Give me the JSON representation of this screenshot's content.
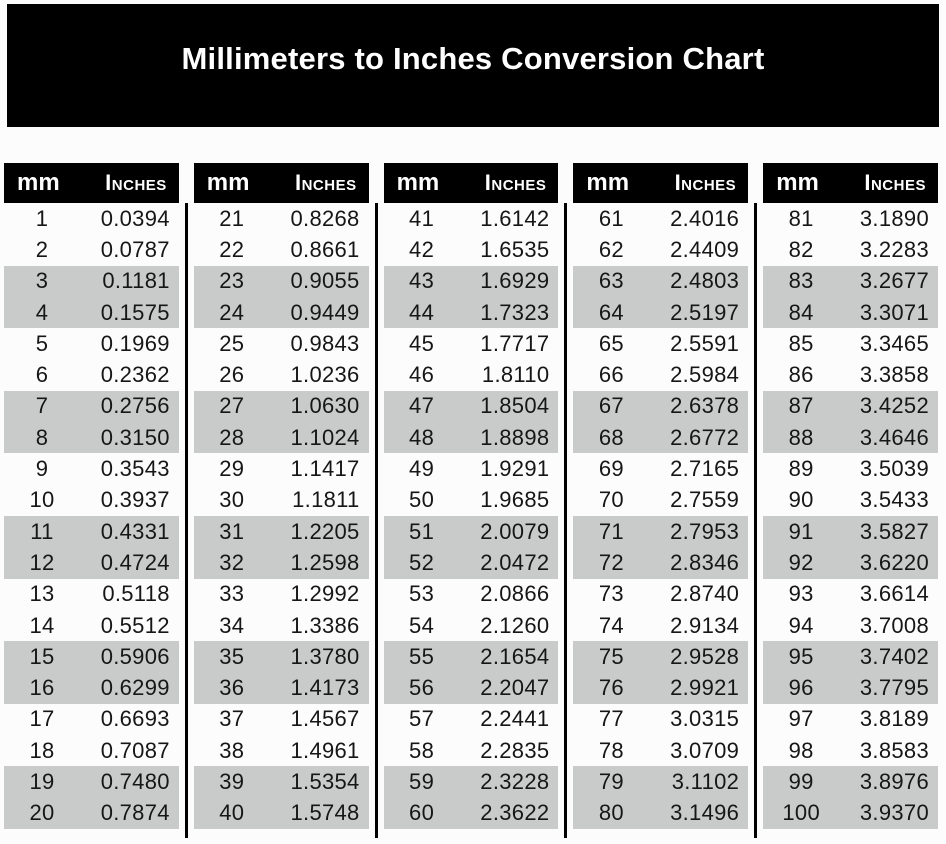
{
  "banner": {
    "title": "Millimeters to Inches Conversion Chart"
  },
  "table_header": {
    "mm_label": "mm",
    "inches_label": "Inches"
  },
  "colors": {
    "banner_bg": "#000000",
    "banner_text": "#ffffff",
    "header_bg": "#000000",
    "header_text": "#ffffff",
    "row_shaded_bg": "#c9cbca",
    "row_plain_bg": "#fcfcfc",
    "divider": "#000000",
    "body_text": "#161616"
  },
  "chart_data": {
    "type": "table",
    "title": "Millimeters to Inches Conversion Chart",
    "columns": [
      "mm",
      "Inches"
    ],
    "layout": "5 side-by-side blocks of 20 rows separated by vertical black rules",
    "shading_pattern": "within each block, row pairs 3-4, 7-8, 11-12, 15-16, 19-20 have gray background",
    "blocks": [
      {
        "rows": [
          [
            "1",
            "0.0394"
          ],
          [
            "2",
            "0.0787"
          ],
          [
            "3",
            "0.1181"
          ],
          [
            "4",
            "0.1575"
          ],
          [
            "5",
            "0.1969"
          ],
          [
            "6",
            "0.2362"
          ],
          [
            "7",
            "0.2756"
          ],
          [
            "8",
            "0.3150"
          ],
          [
            "9",
            "0.3543"
          ],
          [
            "10",
            "0.3937"
          ],
          [
            "11",
            "0.4331"
          ],
          [
            "12",
            "0.4724"
          ],
          [
            "13",
            "0.5118"
          ],
          [
            "14",
            "0.5512"
          ],
          [
            "15",
            "0.5906"
          ],
          [
            "16",
            "0.6299"
          ],
          [
            "17",
            "0.6693"
          ],
          [
            "18",
            "0.7087"
          ],
          [
            "19",
            "0.7480"
          ],
          [
            "20",
            "0.7874"
          ]
        ]
      },
      {
        "rows": [
          [
            "21",
            "0.8268"
          ],
          [
            "22",
            "0.8661"
          ],
          [
            "23",
            "0.9055"
          ],
          [
            "24",
            "0.9449"
          ],
          [
            "25",
            "0.9843"
          ],
          [
            "26",
            "1.0236"
          ],
          [
            "27",
            "1.0630"
          ],
          [
            "28",
            "1.1024"
          ],
          [
            "29",
            "1.1417"
          ],
          [
            "30",
            "1.1811"
          ],
          [
            "31",
            "1.2205"
          ],
          [
            "32",
            "1.2598"
          ],
          [
            "33",
            "1.2992"
          ],
          [
            "34",
            "1.3386"
          ],
          [
            "35",
            "1.3780"
          ],
          [
            "36",
            "1.4173"
          ],
          [
            "37",
            "1.4567"
          ],
          [
            "38",
            "1.4961"
          ],
          [
            "39",
            "1.5354"
          ],
          [
            "40",
            "1.5748"
          ]
        ]
      },
      {
        "rows": [
          [
            "41",
            "1.6142"
          ],
          [
            "42",
            "1.6535"
          ],
          [
            "43",
            "1.6929"
          ],
          [
            "44",
            "1.7323"
          ],
          [
            "45",
            "1.7717"
          ],
          [
            "46",
            "1.8110"
          ],
          [
            "47",
            "1.8504"
          ],
          [
            "48",
            "1.8898"
          ],
          [
            "49",
            "1.9291"
          ],
          [
            "50",
            "1.9685"
          ],
          [
            "51",
            "2.0079"
          ],
          [
            "52",
            "2.0472"
          ],
          [
            "53",
            "2.0866"
          ],
          [
            "54",
            "2.1260"
          ],
          [
            "55",
            "2.1654"
          ],
          [
            "56",
            "2.2047"
          ],
          [
            "57",
            "2.2441"
          ],
          [
            "58",
            "2.2835"
          ],
          [
            "59",
            "2.3228"
          ],
          [
            "60",
            "2.3622"
          ]
        ]
      },
      {
        "rows": [
          [
            "61",
            "2.4016"
          ],
          [
            "62",
            "2.4409"
          ],
          [
            "63",
            "2.4803"
          ],
          [
            "64",
            "2.5197"
          ],
          [
            "65",
            "2.5591"
          ],
          [
            "66",
            "2.5984"
          ],
          [
            "67",
            "2.6378"
          ],
          [
            "68",
            "2.6772"
          ],
          [
            "69",
            "2.7165"
          ],
          [
            "70",
            "2.7559"
          ],
          [
            "71",
            "2.7953"
          ],
          [
            "72",
            "2.8346"
          ],
          [
            "73",
            "2.8740"
          ],
          [
            "74",
            "2.9134"
          ],
          [
            "75",
            "2.9528"
          ],
          [
            "76",
            "2.9921"
          ],
          [
            "77",
            "3.0315"
          ],
          [
            "78",
            "3.0709"
          ],
          [
            "79",
            "3.1102"
          ],
          [
            "80",
            "3.1496"
          ]
        ]
      },
      {
        "rows": [
          [
            "81",
            "3.1890"
          ],
          [
            "82",
            "3.2283"
          ],
          [
            "83",
            "3.2677"
          ],
          [
            "84",
            "3.3071"
          ],
          [
            "85",
            "3.3465"
          ],
          [
            "86",
            "3.3858"
          ],
          [
            "87",
            "3.4252"
          ],
          [
            "88",
            "3.4646"
          ],
          [
            "89",
            "3.5039"
          ],
          [
            "90",
            "3.5433"
          ],
          [
            "91",
            "3.5827"
          ],
          [
            "92",
            "3.6220"
          ],
          [
            "93",
            "3.6614"
          ],
          [
            "94",
            "3.7008"
          ],
          [
            "95",
            "3.7402"
          ],
          [
            "96",
            "3.7795"
          ],
          [
            "97",
            "3.8189"
          ],
          [
            "98",
            "3.8583"
          ],
          [
            "99",
            "3.8976"
          ],
          [
            "100",
            "3.9370"
          ]
        ]
      }
    ]
  }
}
